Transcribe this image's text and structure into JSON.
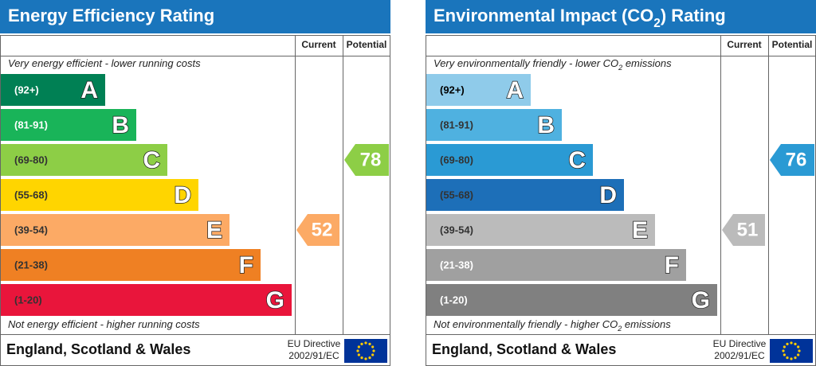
{
  "panels": [
    {
      "title": [
        {
          "text": "Energy Efficiency Rating"
        }
      ],
      "columns": [
        "Current",
        "Potential"
      ],
      "top_note": [
        {
          "text": "Very energy efficient - lower running costs"
        }
      ],
      "bands": [
        {
          "range": "(92+)",
          "letter": "A",
          "color": "#008054",
          "range_color": "#ffffff"
        },
        {
          "range": "(81-91)",
          "letter": "B",
          "color": "#19b459",
          "range_color": "#ffffff"
        },
        {
          "range": "(69-80)",
          "letter": "C",
          "color": "#8dce46",
          "range_color": "#333333"
        },
        {
          "range": "(55-68)",
          "letter": "D",
          "color": "#ffd500",
          "range_color": "#333333"
        },
        {
          "range": "(39-54)",
          "letter": "E",
          "color": "#fcaa65",
          "range_color": "#333333"
        },
        {
          "range": "(21-38)",
          "letter": "F",
          "color": "#ef8023",
          "range_color": "#333333"
        },
        {
          "range": "(1-20)",
          "letter": "G",
          "color": "#e9153b",
          "range_color": "#333333"
        }
      ],
      "current": 52,
      "potential": 78,
      "bottom_note": [
        {
          "text": "Not energy efficient - higher running costs"
        }
      ],
      "region": "England, Scotland & Wales",
      "directive": [
        "EU Directive",
        "2002/91/EC"
      ]
    },
    {
      "title": [
        {
          "text": "Environmental Impact (CO"
        },
        {
          "text": "2",
          "sub": true
        },
        {
          "text": ") Rating"
        }
      ],
      "columns": [
        "Current",
        "Potential"
      ],
      "top_note": [
        {
          "text": "Very environmentally friendly - lower CO"
        },
        {
          "text": "2",
          "sub": true
        },
        {
          "text": " emissions"
        }
      ],
      "bands": [
        {
          "range": "(92+)",
          "letter": "A",
          "color": "#8fcbea",
          "range_color": "#000000"
        },
        {
          "range": "(81-91)",
          "letter": "B",
          "color": "#4fb1e0",
          "range_color": "#333333"
        },
        {
          "range": "(69-80)",
          "letter": "C",
          "color": "#2a9ad4",
          "range_color": "#333333"
        },
        {
          "range": "(55-68)",
          "letter": "D",
          "color": "#1d6fb8",
          "range_color": "#333333"
        },
        {
          "range": "(39-54)",
          "letter": "E",
          "color": "#bbbbbb",
          "range_color": "#333333"
        },
        {
          "range": "(21-38)",
          "letter": "F",
          "color": "#a0a0a0",
          "range_color": "#ffffff"
        },
        {
          "range": "(1-20)",
          "letter": "G",
          "color": "#808080",
          "range_color": "#ffffff"
        }
      ],
      "current": 51,
      "potential": 76,
      "bottom_note": [
        {
          "text": "Not environmentally friendly - higher CO"
        },
        {
          "text": "2",
          "sub": true
        },
        {
          "text": " emissions"
        }
      ],
      "region": "England, Scotland & Wales",
      "directive": [
        "EU Directive",
        "2002/91/EC"
      ]
    }
  ]
}
